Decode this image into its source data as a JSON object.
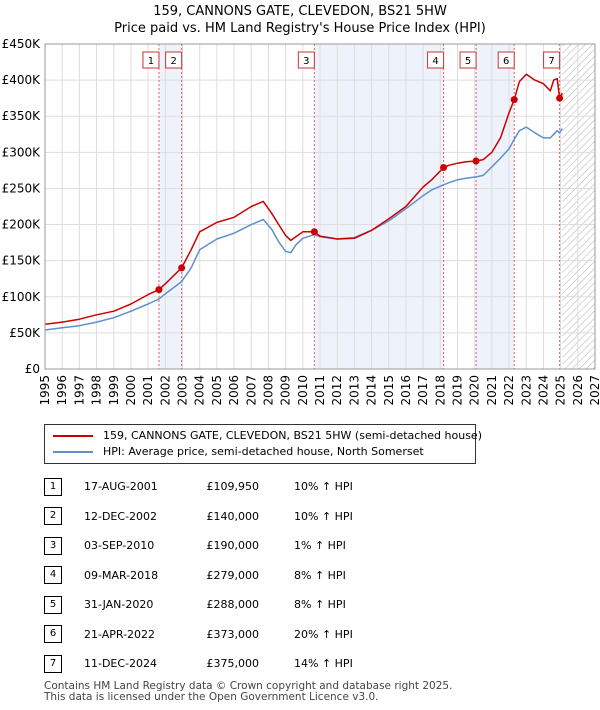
{
  "chart_data": {
    "type": "line",
    "title": "159, CANNONS GATE, CLEVEDON, BS21 5HW",
    "subtitle": "Price paid vs. HM Land Registry's House Price Index (HPI)",
    "xlim": [
      1995,
      2027
    ],
    "ylim": [
      0,
      450000
    ],
    "x_ticks": [
      "1995",
      "1996",
      "1997",
      "1998",
      "1999",
      "2000",
      "2001",
      "2002",
      "2003",
      "2004",
      "2005",
      "2006",
      "2007",
      "2008",
      "2009",
      "2010",
      "2011",
      "2012",
      "2013",
      "2014",
      "2015",
      "2016",
      "2017",
      "2018",
      "2019",
      "2020",
      "2021",
      "2022",
      "2023",
      "2024",
      "2025",
      "2026",
      "2027"
    ],
    "y_ticks": [
      {
        "value": 0,
        "label": "£0"
      },
      {
        "value": 50000,
        "label": "£50K"
      },
      {
        "value": 100000,
        "label": "£100K"
      },
      {
        "value": 150000,
        "label": "£150K"
      },
      {
        "value": 200000,
        "label": "£200K"
      },
      {
        "value": 250000,
        "label": "£250K"
      },
      {
        "value": 300000,
        "label": "£300K"
      },
      {
        "value": 350000,
        "label": "£350K"
      },
      {
        "value": 400000,
        "label": "£400K"
      },
      {
        "value": 450000,
        "label": "£450K"
      }
    ],
    "colors": {
      "property": "#cc0000",
      "hpi": "#6090cc",
      "shade": "#eef2fb",
      "future_hatch": "#bbbbbb"
    },
    "series": [
      {
        "name": "159, CANNONS GATE, CLEVEDON, BS21 5HW (semi-detached house)",
        "x": [
          1995,
          1996,
          1997,
          1998,
          1999,
          2000,
          2001,
          2001.63,
          2002,
          2002.95,
          2003.5,
          2004,
          2005,
          2006,
          2007,
          2007.7,
          2008.2,
          2008.6,
          2009,
          2009.3,
          2009.6,
          2010,
          2010.67,
          2011,
          2012,
          2013,
          2014,
          2015,
          2016,
          2017,
          2017.5,
          2018.19,
          2018.5,
          2019,
          2019.5,
          2020.08,
          2020.5,
          2021,
          2021.5,
          2022,
          2022.3,
          2022.6,
          2023,
          2023.5,
          2024,
          2024.4,
          2024.6,
          2024.8,
          2024.94,
          2025.1
        ],
        "values": [
          62000,
          65000,
          69000,
          75000,
          80000,
          90000,
          103000,
          109950,
          118000,
          140000,
          165000,
          190000,
          203000,
          210000,
          225000,
          232000,
          215000,
          200000,
          185000,
          178000,
          183000,
          190000,
          190000,
          184000,
          180000,
          181000,
          192000,
          208000,
          225000,
          252000,
          262000,
          279000,
          282000,
          285000,
          287000,
          288000,
          290000,
          300000,
          320000,
          355000,
          373000,
          398000,
          408000,
          400000,
          395000,
          385000,
          400000,
          402000,
          375000,
          382000
        ]
      },
      {
        "name": "HPI: Average price, semi-detached house, North Somerset",
        "x": [
          1995,
          1996,
          1997,
          1998,
          1999,
          2000,
          2001,
          2001.63,
          2002,
          2002.95,
          2003.5,
          2004,
          2005,
          2006,
          2007,
          2007.7,
          2008.2,
          2008.6,
          2009,
          2009.3,
          2009.6,
          2010,
          2010.67,
          2011,
          2012,
          2013,
          2014,
          2015,
          2016,
          2017,
          2017.5,
          2018.19,
          2018.5,
          2019,
          2019.5,
          2020.08,
          2020.5,
          2021,
          2021.5,
          2022,
          2022.3,
          2022.6,
          2023,
          2023.5,
          2024,
          2024.4,
          2024.6,
          2024.8,
          2024.94,
          2025.1
        ],
        "values": [
          54000,
          57000,
          60000,
          65000,
          71000,
          80000,
          90000,
          97000,
          104000,
          121000,
          140000,
          165000,
          180000,
          188000,
          200000,
          207000,
          193000,
          176000,
          163000,
          161000,
          172000,
          181000,
          186000,
          183000,
          180000,
          182000,
          192000,
          205000,
          222000,
          240000,
          248000,
          255000,
          258000,
          262000,
          264000,
          266000,
          268000,
          280000,
          292000,
          305000,
          318000,
          330000,
          335000,
          327000,
          320000,
          320000,
          325000,
          330000,
          327000,
          333000
        ]
      }
    ],
    "events": [
      {
        "num": "1",
        "x": 2001.63,
        "value": 109950
      },
      {
        "num": "2",
        "x": 2002.95,
        "value": 140000
      },
      {
        "num": "3",
        "x": 2010.67,
        "value": 190000
      },
      {
        "num": "4",
        "x": 2018.19,
        "value": 279000
      },
      {
        "num": "5",
        "x": 2020.08,
        "value": 288000
      },
      {
        "num": "6",
        "x": 2022.3,
        "value": 373000
      },
      {
        "num": "7",
        "x": 2024.94,
        "value": 375000
      }
    ],
    "shaded_ranges": [
      [
        2001.63,
        2002.95
      ],
      [
        2010.67,
        2018.19
      ],
      [
        2020.08,
        2022.3
      ]
    ],
    "future_from": 2025.1
  },
  "table": [
    {
      "num": "1",
      "date": "17-AUG-2001",
      "price": "£109,950",
      "hpi": "10% ↑ HPI"
    },
    {
      "num": "2",
      "date": "12-DEC-2002",
      "price": "£140,000",
      "hpi": "10% ↑ HPI"
    },
    {
      "num": "3",
      "date": "03-SEP-2010",
      "price": "£190,000",
      "hpi": "1% ↑ HPI"
    },
    {
      "num": "4",
      "date": "09-MAR-2018",
      "price": "£279,000",
      "hpi": "8% ↑ HPI"
    },
    {
      "num": "5",
      "date": "31-JAN-2020",
      "price": "£288,000",
      "hpi": "8% ↑ HPI"
    },
    {
      "num": "6",
      "date": "21-APR-2022",
      "price": "£373,000",
      "hpi": "20% ↑ HPI"
    },
    {
      "num": "7",
      "date": "11-DEC-2024",
      "price": "£375,000",
      "hpi": "14% ↑ HPI"
    }
  ],
  "footer": {
    "line1": "Contains HM Land Registry data © Crown copyright and database right 2025.",
    "line2": "This data is licensed under the Open Government Licence v3.0."
  }
}
